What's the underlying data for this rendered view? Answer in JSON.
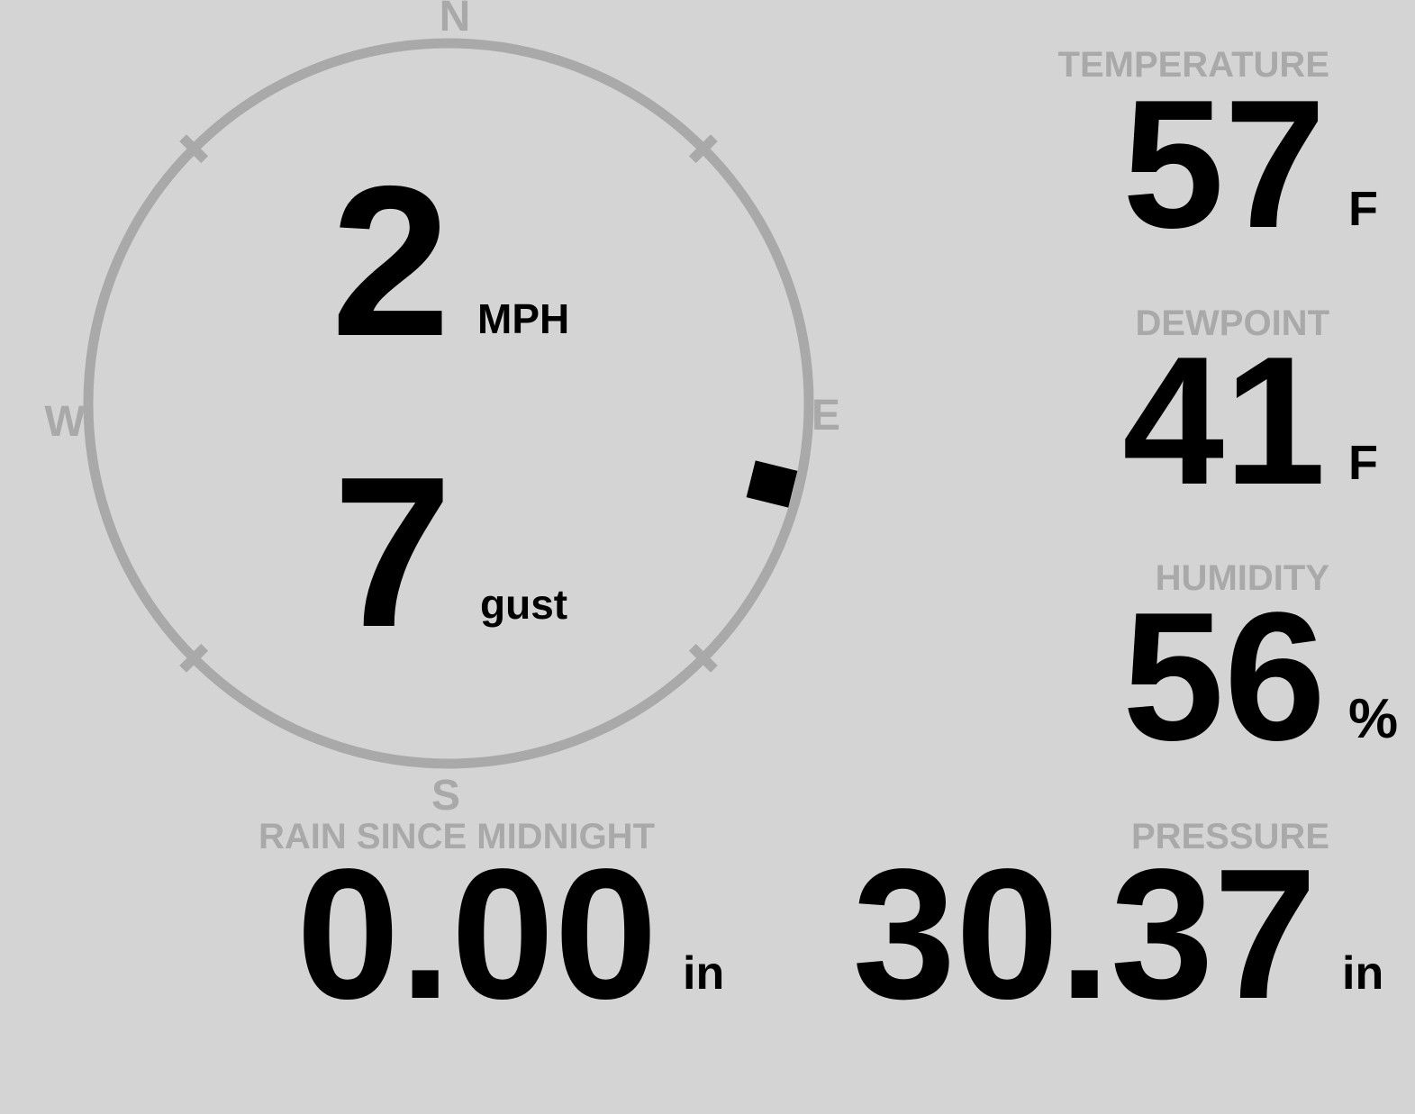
{
  "theme": {
    "background": "#d4d4d4",
    "muted": "#a9a9a9",
    "foreground": "#000000"
  },
  "wind": {
    "compass": {
      "north": "N",
      "east": "E",
      "south": "S",
      "west": "W"
    },
    "speed": {
      "value": "2",
      "unit": "MPH"
    },
    "gust": {
      "value": "7",
      "unit": "gust"
    },
    "direction_degrees": 104
  },
  "temperature": {
    "label": "TEMPERATURE",
    "value": "57",
    "unit": "F"
  },
  "dewpoint": {
    "label": "DEWPOINT",
    "value": "41",
    "unit": "F"
  },
  "humidity": {
    "label": "HUMIDITY",
    "value": "56",
    "unit": "%"
  },
  "rain": {
    "label": "RAIN SINCE MIDNIGHT",
    "value": "0.00",
    "unit": "in"
  },
  "pressure": {
    "label": "PRESSURE",
    "value": "30.37",
    "unit": "in"
  }
}
